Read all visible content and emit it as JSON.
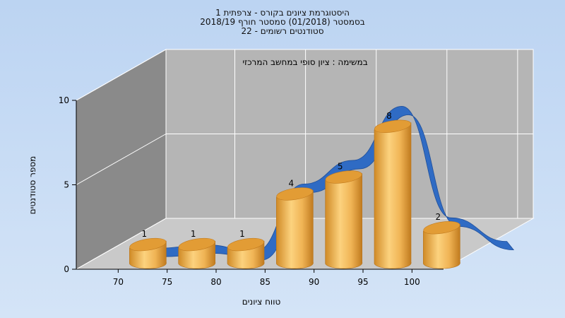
{
  "chart_data": {
    "type": "bar",
    "title_lines": [
      "היסטוגרמת ציונים בקורס - צרפתית 1",
      "בסמסטר  (01/2018)  סמסטר חורף 2018/19",
      "סטודנטים רשומים - 22"
    ],
    "annotation": "במשימה : ציון סופי במחשב המרכזי",
    "xlabel": "טווח ציונים",
    "ylabel": "מספר סטודנטים",
    "categories": [
      "70",
      "75",
      "80",
      "85",
      "90",
      "95",
      "100"
    ],
    "values": [
      1,
      1,
      1,
      4,
      5,
      8,
      2
    ],
    "y_ticks": [
      0,
      5,
      10
    ],
    "ylim": [
      0,
      10
    ],
    "grid": true,
    "trend_series": [
      0.2,
      0.4,
      0.0,
      4.0,
      5.4,
      8.6,
      2.0
    ],
    "colors": {
      "background": "#b8d0f0",
      "bar": "#e6a63e",
      "trend": "#2f6bc4",
      "back_wall": "#b5b5b5",
      "side_wall": "#8a8a8a",
      "floor": "#c9c9c9"
    }
  }
}
